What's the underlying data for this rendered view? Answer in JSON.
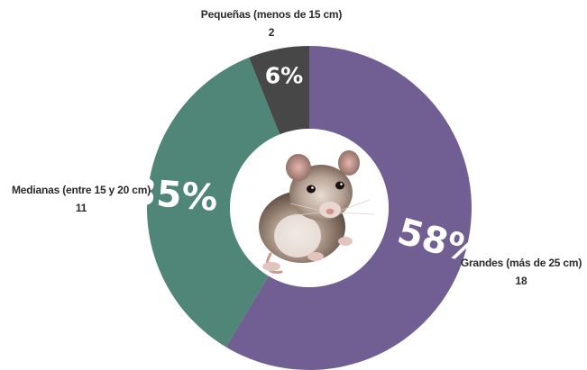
{
  "chart_data": {
    "type": "pie",
    "donut": true,
    "title": "",
    "slices": [
      {
        "label": "Grandes (más de 25 cm)",
        "count": "18",
        "value": 58,
        "percent_label": "58%",
        "color": "#715e93"
      },
      {
        "label": "Medianas (entre 15 y 20 cm)",
        "count": "11",
        "value": 35,
        "percent_label": "35%",
        "color": "#4f8678"
      },
      {
        "label": "Pequeñas (menos de 15 cm)",
        "count": "2",
        "value": 6,
        "percent_label": "6%",
        "color": "#474747"
      }
    ],
    "center_image": "rat-photo"
  }
}
